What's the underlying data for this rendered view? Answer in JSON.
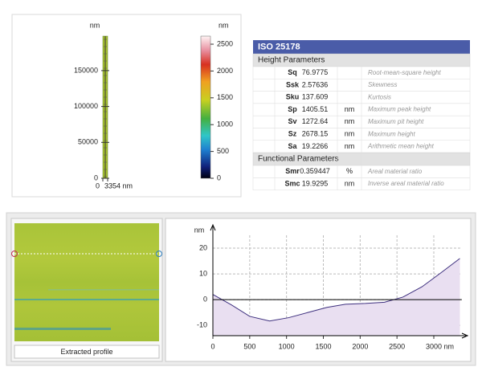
{
  "chart_data": [
    {
      "type": "image",
      "y_label": "nm",
      "ylim": [
        0,
        198000
      ],
      "yticks": [
        0,
        50000,
        100000,
        150000
      ],
      "xlim": [
        0,
        3354
      ],
      "xticks": [
        0,
        {
          "value": 3354,
          "label": "3354 nm"
        }
      ],
      "colorbar": {
        "label": "nm",
        "lim": [
          0,
          2650
        ],
        "ticks": [
          0,
          500,
          1000,
          1500,
          2000,
          2500
        ]
      }
    },
    {
      "type": "area",
      "y_label": "nm",
      "x": [
        0,
        250,
        500,
        770,
        1030,
        1290,
        1550,
        1800,
        2070,
        2330,
        2580,
        2840,
        3100,
        3354
      ],
      "series": [
        {
          "color": "#3d2f7e",
          "fill": "#e9dff1",
          "values": [
            2,
            -2,
            -6.5,
            -8.3,
            -7,
            -5,
            -3,
            -1.8,
            -1.5,
            -1,
            1,
            5,
            10.5,
            16
          ]
        }
      ],
      "xlim": [
        0,
        3380
      ],
      "xticks": [
        0,
        500,
        1000,
        1500,
        2000,
        2500,
        {
          "value": 3000,
          "label": "3000 nm"
        }
      ],
      "ylim": [
        -14,
        25
      ],
      "yticks": [
        -10,
        0,
        10,
        20
      ],
      "grid": true,
      "zero_line": true
    }
  ],
  "table": {
    "title": "ISO 25178",
    "sections": [
      {
        "title": "Height Parameters",
        "rows": [
          {
            "name": "Sq",
            "value": "76.9775",
            "description": "Root-mean-square height"
          },
          {
            "name": "Ssk",
            "value": "2.57636",
            "description": "Skewness"
          },
          {
            "name": "Sku",
            "value": "137.609",
            "description": "Kurtosis"
          },
          {
            "name": "Sp",
            "value": "1405.51",
            "unit": "nm",
            "description": "Maximum peak height"
          },
          {
            "name": "Sv",
            "value": "1272.64",
            "unit": "nm",
            "description": "Maximum pit height"
          },
          {
            "name": "Sz",
            "value": "2678.15",
            "unit": "nm",
            "description": "Maximum height"
          },
          {
            "name": "Sa",
            "value": "19.2266",
            "unit": "nm",
            "description": "Arithmetic mean height"
          }
        ]
      },
      {
        "title": "Functional Parameters",
        "rows": [
          {
            "name": "Smr",
            "value": "0.359447",
            "unit": "%",
            "description": "Areal material ratio"
          },
          {
            "name": "Smc",
            "value": "19.9295",
            "unit": "nm",
            "description": "Inverse areal material ratio"
          }
        ]
      }
    ]
  },
  "profile_panel": {
    "button": "Extracted profile"
  }
}
